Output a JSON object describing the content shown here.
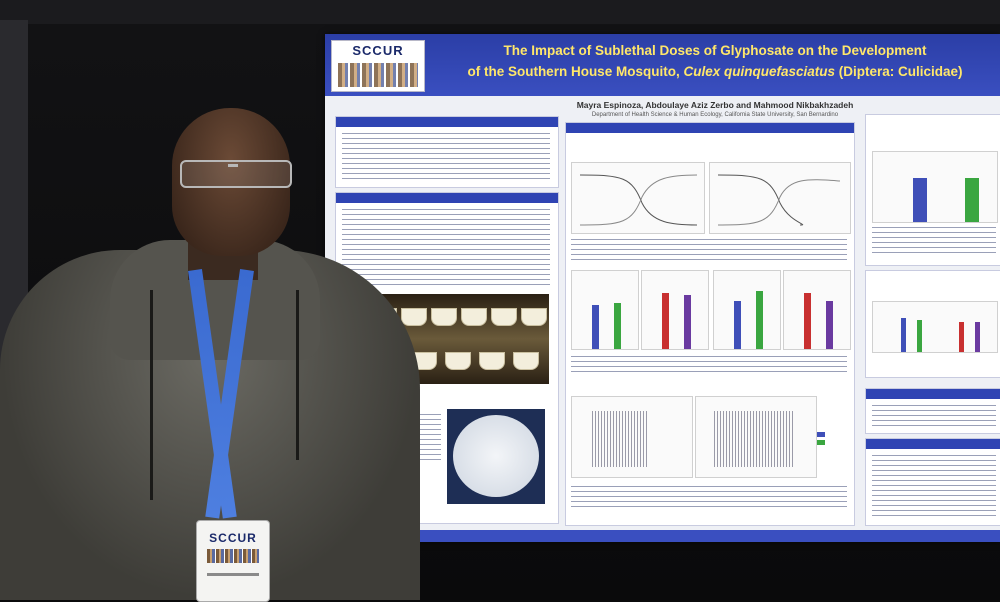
{
  "poster": {
    "logo": "SCCUR",
    "title_line1": "The Impact of Sublethal Doses of Glyphosate on the Development",
    "title_line2_pre": "of the Southern House Mosquito, ",
    "title_line2_species": "Culex quinquefasciatus",
    "title_line2_post": " (Diptera: Culicidae)",
    "authors": "Mayra Espinoza, Abdoulaye Aziz Zerbo and Mahmood Nikbakhzadeh",
    "affiliation": "Department of Health Science & Human Ecology, California State University, San Bernardino"
  },
  "badge": {
    "logo": "SCCUR"
  },
  "colors": {
    "header_blue": "#3a4fc0",
    "title_yellow": "#ffe76a",
    "lanyard_blue": "#4e7fe0",
    "hoodie_gray": "#55544e"
  },
  "chart_bars": {
    "series_colors": [
      "#3f4fb8",
      "#3aa640",
      "#c83030",
      "#6a3aa0"
    ]
  }
}
